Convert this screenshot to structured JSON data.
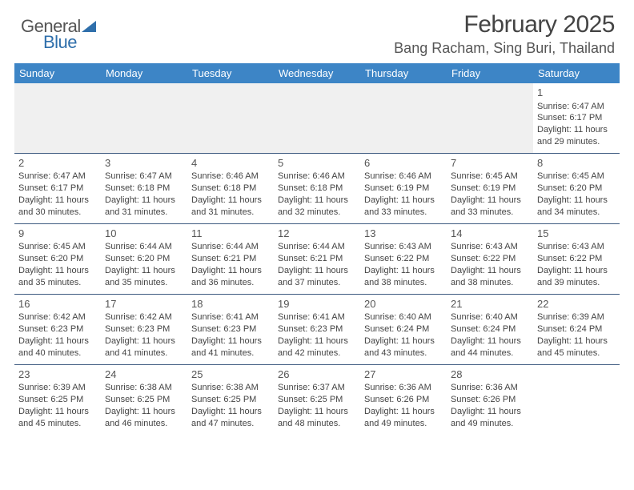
{
  "logo": {
    "word1": "General",
    "word2": "Blue"
  },
  "header": {
    "month_title": "February 2025",
    "location": "Bang Racham, Sing Buri, Thailand"
  },
  "weekdays": [
    "Sunday",
    "Monday",
    "Tuesday",
    "Wednesday",
    "Thursday",
    "Friday",
    "Saturday"
  ],
  "colors": {
    "header_bg": "#3d85c6",
    "header_fg": "#ffffff",
    "rule": "#3d5a80",
    "logo_blue": "#2f6fab"
  },
  "weeks": [
    [
      null,
      null,
      null,
      null,
      null,
      null,
      {
        "n": "1",
        "sunrise": "Sunrise: 6:47 AM",
        "sunset": "Sunset: 6:17 PM",
        "day1": "Daylight: 11 hours",
        "day2": "and 29 minutes."
      }
    ],
    [
      {
        "n": "2",
        "sunrise": "Sunrise: 6:47 AM",
        "sunset": "Sunset: 6:17 PM",
        "day1": "Daylight: 11 hours",
        "day2": "and 30 minutes."
      },
      {
        "n": "3",
        "sunrise": "Sunrise: 6:47 AM",
        "sunset": "Sunset: 6:18 PM",
        "day1": "Daylight: 11 hours",
        "day2": "and 31 minutes."
      },
      {
        "n": "4",
        "sunrise": "Sunrise: 6:46 AM",
        "sunset": "Sunset: 6:18 PM",
        "day1": "Daylight: 11 hours",
        "day2": "and 31 minutes."
      },
      {
        "n": "5",
        "sunrise": "Sunrise: 6:46 AM",
        "sunset": "Sunset: 6:18 PM",
        "day1": "Daylight: 11 hours",
        "day2": "and 32 minutes."
      },
      {
        "n": "6",
        "sunrise": "Sunrise: 6:46 AM",
        "sunset": "Sunset: 6:19 PM",
        "day1": "Daylight: 11 hours",
        "day2": "and 33 minutes."
      },
      {
        "n": "7",
        "sunrise": "Sunrise: 6:45 AM",
        "sunset": "Sunset: 6:19 PM",
        "day1": "Daylight: 11 hours",
        "day2": "and 33 minutes."
      },
      {
        "n": "8",
        "sunrise": "Sunrise: 6:45 AM",
        "sunset": "Sunset: 6:20 PM",
        "day1": "Daylight: 11 hours",
        "day2": "and 34 minutes."
      }
    ],
    [
      {
        "n": "9",
        "sunrise": "Sunrise: 6:45 AM",
        "sunset": "Sunset: 6:20 PM",
        "day1": "Daylight: 11 hours",
        "day2": "and 35 minutes."
      },
      {
        "n": "10",
        "sunrise": "Sunrise: 6:44 AM",
        "sunset": "Sunset: 6:20 PM",
        "day1": "Daylight: 11 hours",
        "day2": "and 35 minutes."
      },
      {
        "n": "11",
        "sunrise": "Sunrise: 6:44 AM",
        "sunset": "Sunset: 6:21 PM",
        "day1": "Daylight: 11 hours",
        "day2": "and 36 minutes."
      },
      {
        "n": "12",
        "sunrise": "Sunrise: 6:44 AM",
        "sunset": "Sunset: 6:21 PM",
        "day1": "Daylight: 11 hours",
        "day2": "and 37 minutes."
      },
      {
        "n": "13",
        "sunrise": "Sunrise: 6:43 AM",
        "sunset": "Sunset: 6:22 PM",
        "day1": "Daylight: 11 hours",
        "day2": "and 38 minutes."
      },
      {
        "n": "14",
        "sunrise": "Sunrise: 6:43 AM",
        "sunset": "Sunset: 6:22 PM",
        "day1": "Daylight: 11 hours",
        "day2": "and 38 minutes."
      },
      {
        "n": "15",
        "sunrise": "Sunrise: 6:43 AM",
        "sunset": "Sunset: 6:22 PM",
        "day1": "Daylight: 11 hours",
        "day2": "and 39 minutes."
      }
    ],
    [
      {
        "n": "16",
        "sunrise": "Sunrise: 6:42 AM",
        "sunset": "Sunset: 6:23 PM",
        "day1": "Daylight: 11 hours",
        "day2": "and 40 minutes."
      },
      {
        "n": "17",
        "sunrise": "Sunrise: 6:42 AM",
        "sunset": "Sunset: 6:23 PM",
        "day1": "Daylight: 11 hours",
        "day2": "and 41 minutes."
      },
      {
        "n": "18",
        "sunrise": "Sunrise: 6:41 AM",
        "sunset": "Sunset: 6:23 PM",
        "day1": "Daylight: 11 hours",
        "day2": "and 41 minutes."
      },
      {
        "n": "19",
        "sunrise": "Sunrise: 6:41 AM",
        "sunset": "Sunset: 6:23 PM",
        "day1": "Daylight: 11 hours",
        "day2": "and 42 minutes."
      },
      {
        "n": "20",
        "sunrise": "Sunrise: 6:40 AM",
        "sunset": "Sunset: 6:24 PM",
        "day1": "Daylight: 11 hours",
        "day2": "and 43 minutes."
      },
      {
        "n": "21",
        "sunrise": "Sunrise: 6:40 AM",
        "sunset": "Sunset: 6:24 PM",
        "day1": "Daylight: 11 hours",
        "day2": "and 44 minutes."
      },
      {
        "n": "22",
        "sunrise": "Sunrise: 6:39 AM",
        "sunset": "Sunset: 6:24 PM",
        "day1": "Daylight: 11 hours",
        "day2": "and 45 minutes."
      }
    ],
    [
      {
        "n": "23",
        "sunrise": "Sunrise: 6:39 AM",
        "sunset": "Sunset: 6:25 PM",
        "day1": "Daylight: 11 hours",
        "day2": "and 45 minutes."
      },
      {
        "n": "24",
        "sunrise": "Sunrise: 6:38 AM",
        "sunset": "Sunset: 6:25 PM",
        "day1": "Daylight: 11 hours",
        "day2": "and 46 minutes."
      },
      {
        "n": "25",
        "sunrise": "Sunrise: 6:38 AM",
        "sunset": "Sunset: 6:25 PM",
        "day1": "Daylight: 11 hours",
        "day2": "and 47 minutes."
      },
      {
        "n": "26",
        "sunrise": "Sunrise: 6:37 AM",
        "sunset": "Sunset: 6:25 PM",
        "day1": "Daylight: 11 hours",
        "day2": "and 48 minutes."
      },
      {
        "n": "27",
        "sunrise": "Sunrise: 6:36 AM",
        "sunset": "Sunset: 6:26 PM",
        "day1": "Daylight: 11 hours",
        "day2": "and 49 minutes."
      },
      {
        "n": "28",
        "sunrise": "Sunrise: 6:36 AM",
        "sunset": "Sunset: 6:26 PM",
        "day1": "Daylight: 11 hours",
        "day2": "and 49 minutes."
      },
      null
    ]
  ]
}
